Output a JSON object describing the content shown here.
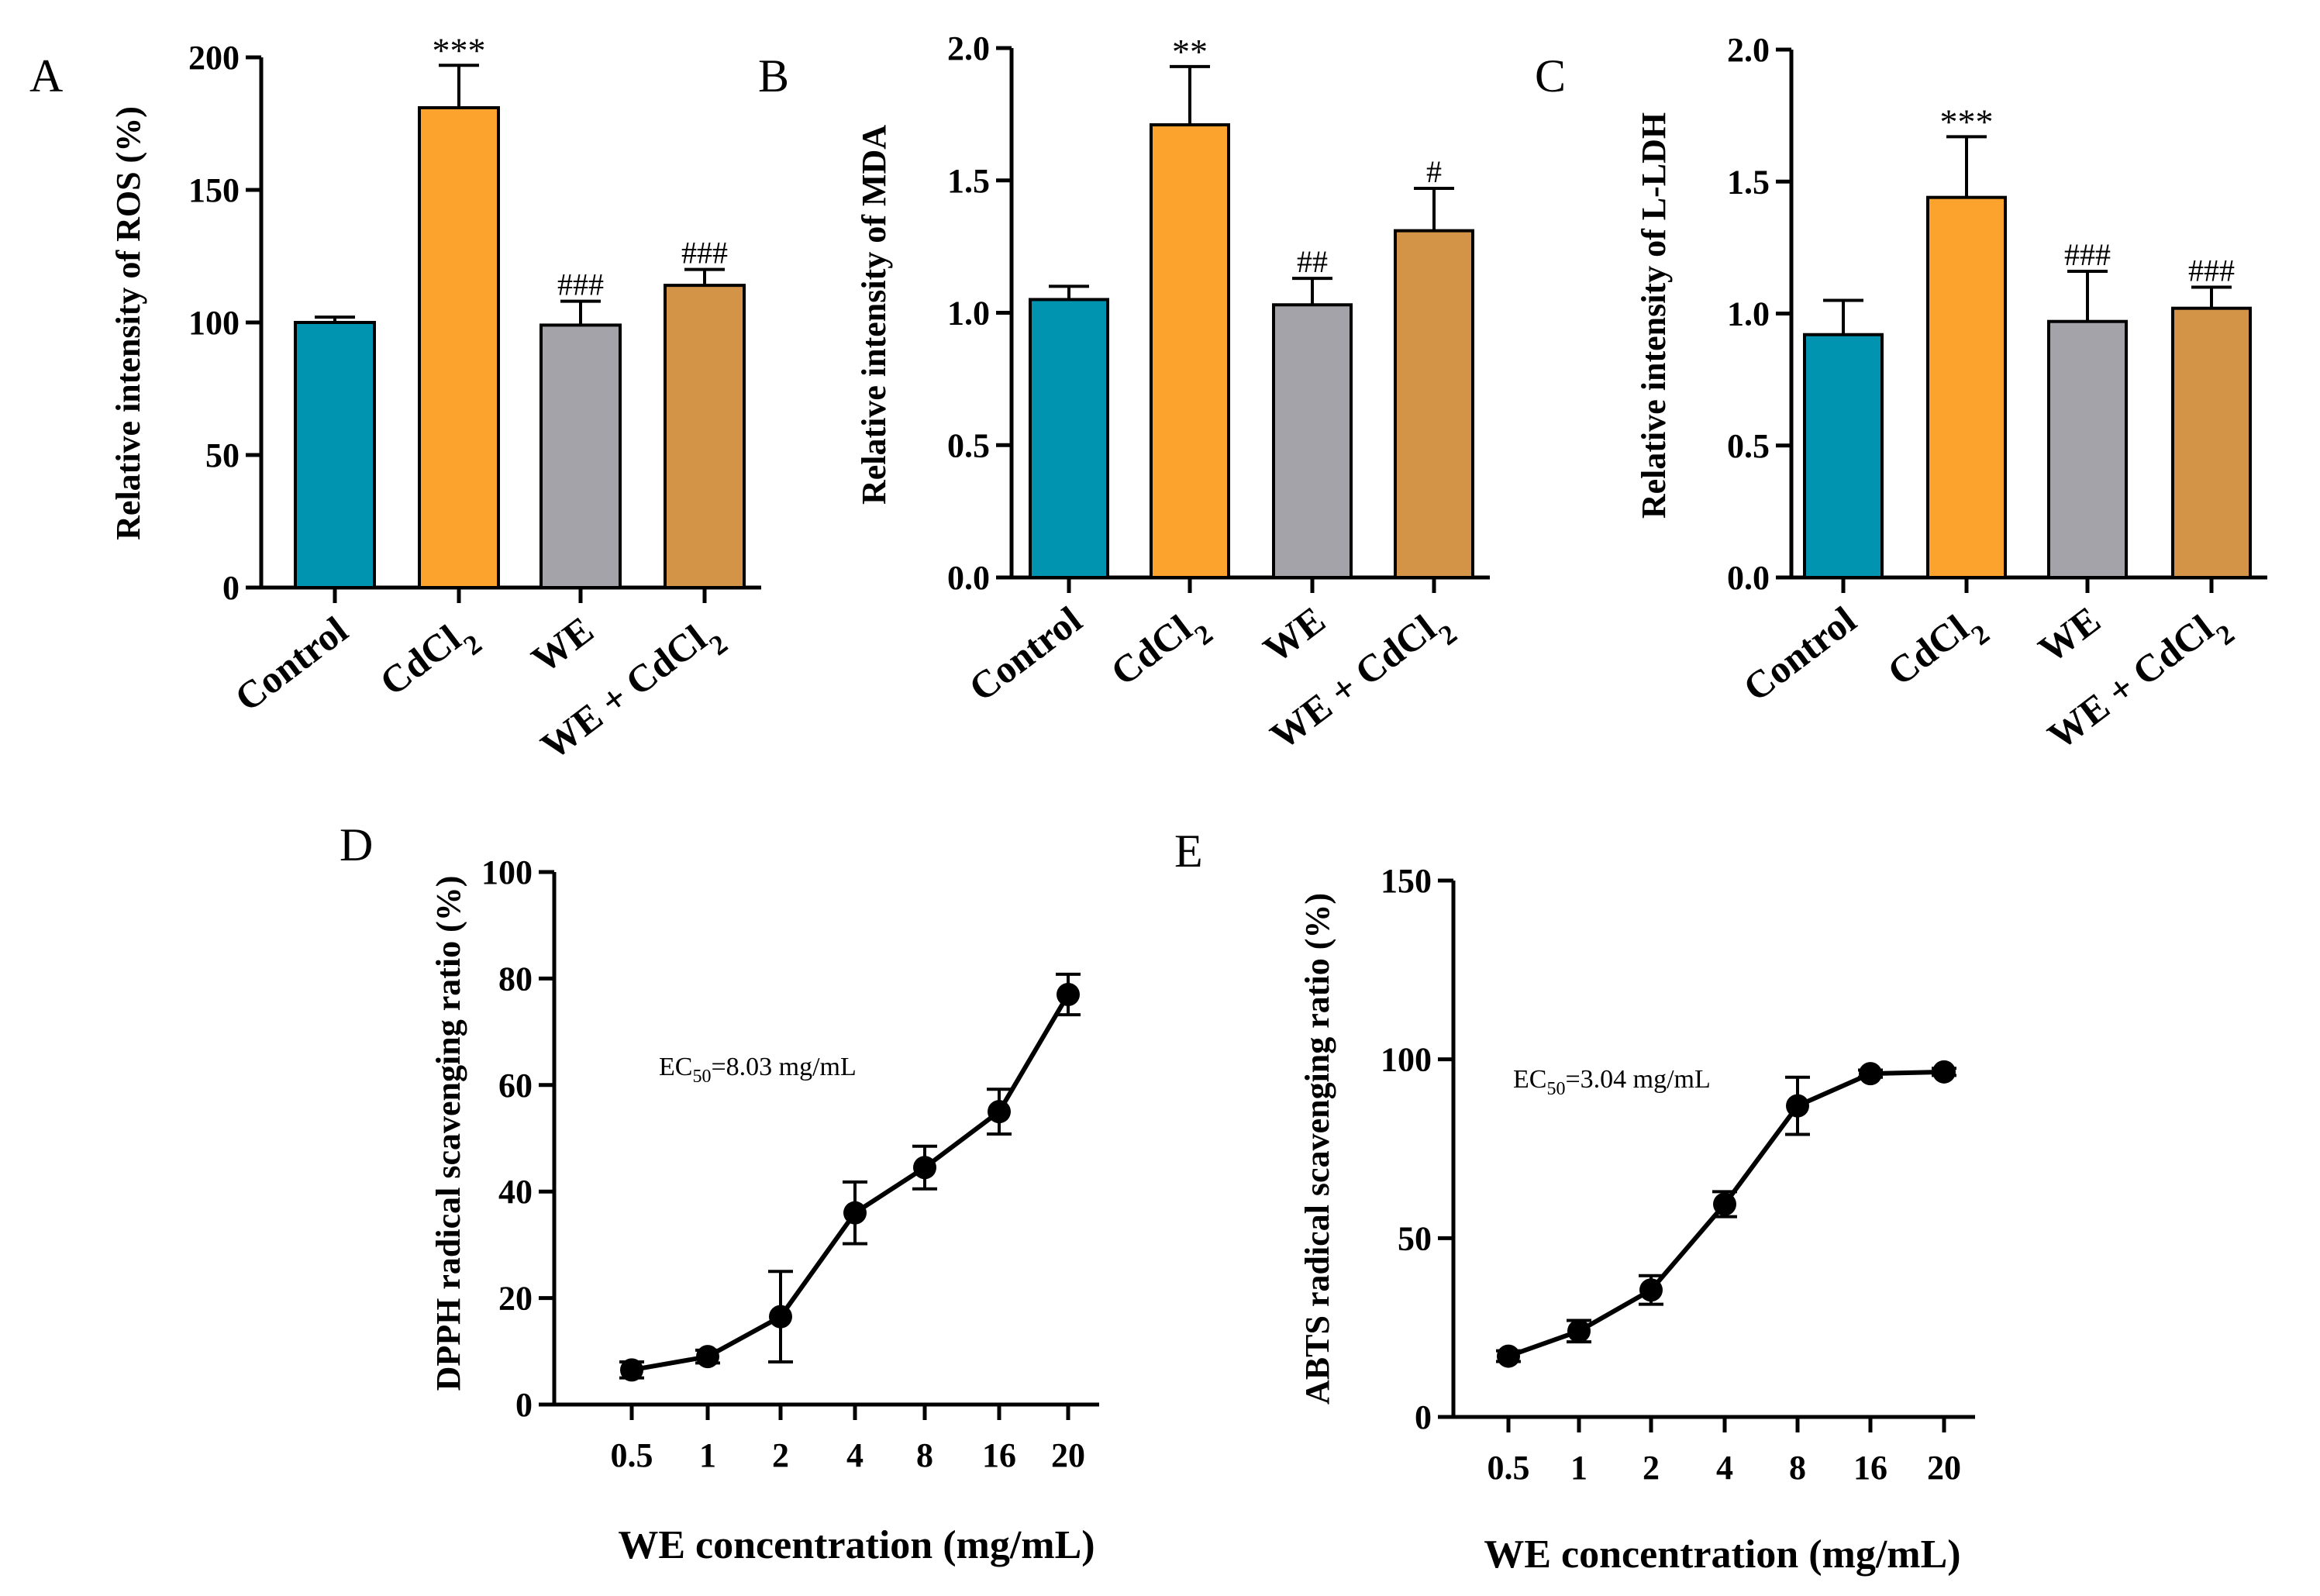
{
  "chart_data": [
    {
      "type": "bar",
      "panel": "A",
      "ylabel": "Relative intensity of ROS (%)",
      "ylim": [
        0,
        200
      ],
      "yticks": [
        0,
        50,
        100,
        150,
        200
      ],
      "categories": [
        "Control",
        "CdCl",
        "WE",
        "WE + CdCl"
      ],
      "category_subscripts": [
        "",
        "2",
        "",
        "2"
      ],
      "values": [
        100,
        181,
        99,
        114
      ],
      "errors": [
        2,
        16,
        9,
        6
      ],
      "annotations": [
        "",
        "***",
        "###",
        "###"
      ],
      "colors": [
        "#0094b0",
        "#fba32d",
        "#a3a3a9",
        "#d39448"
      ]
    },
    {
      "type": "bar",
      "panel": "B",
      "ylabel": "Relative intensity of MDA",
      "ylim": [
        0,
        2.0
      ],
      "yticks": [
        "0.0",
        "0.5",
        "1.0",
        "1.5",
        "2.0"
      ],
      "categories": [
        "Control",
        "CdCl",
        "WE",
        "WE + CdCl"
      ],
      "category_subscripts": [
        "",
        "2",
        "",
        "2"
      ],
      "values": [
        1.05,
        1.71,
        1.03,
        1.31
      ],
      "errors": [
        0.05,
        0.22,
        0.1,
        0.16
      ],
      "annotations": [
        "",
        "**",
        "##",
        "#"
      ],
      "colors": [
        "#0094b0",
        "#fba32d",
        "#a3a3a9",
        "#d39448"
      ]
    },
    {
      "type": "bar",
      "panel": "C",
      "ylabel": "Relative intensity of L-LDH",
      "ylim": [
        0,
        2.0
      ],
      "yticks": [
        "0.0",
        "0.5",
        "1.0",
        "1.5",
        "2.0"
      ],
      "categories": [
        "Control",
        "CdCl",
        "WE",
        "WE + CdCl"
      ],
      "category_subscripts": [
        "",
        "2",
        "",
        "2"
      ],
      "values": [
        0.92,
        1.44,
        0.97,
        1.02
      ],
      "errors": [
        0.13,
        0.23,
        0.19,
        0.08
      ],
      "annotations": [
        "",
        "***",
        "###",
        "###"
      ],
      "colors": [
        "#0094b0",
        "#fba32d",
        "#a3a3a9",
        "#d39448"
      ]
    },
    {
      "type": "line",
      "panel": "D",
      "xlabel": "WE concentration (mg/mL)",
      "ylabel": "DPPH radical scavenging ratio (%)",
      "ylim": [
        0,
        100
      ],
      "yticks": [
        0,
        20,
        40,
        60,
        80,
        100
      ],
      "x": [
        "0.5",
        "1",
        "2",
        "4",
        "8",
        "16",
        "20"
      ],
      "y": [
        6.5,
        9,
        16.5,
        36,
        44.5,
        55,
        77
      ],
      "errors": [
        1.5,
        1.2,
        8.5,
        5.8,
        4,
        4.2,
        3.8
      ],
      "annotation_main": "EC",
      "annotation_sub": "50",
      "annotation_rest": "=8.03 mg/mL"
    },
    {
      "type": "line",
      "panel": "E",
      "xlabel": "WE concentration (mg/mL)",
      "ylabel": "ABTS radical scavenging ratio (%)",
      "ylim": [
        0,
        150
      ],
      "yticks": [
        0,
        50,
        100,
        150
      ],
      "x": [
        "0.5",
        "1",
        "2",
        "4",
        "8",
        "16",
        "20"
      ],
      "y": [
        17,
        24,
        35.5,
        59.5,
        87,
        96,
        96.5
      ],
      "errors": [
        1.5,
        3,
        4,
        3.5,
        8,
        1,
        1
      ],
      "annotation_main": "EC",
      "annotation_sub": "50",
      "annotation_rest": "=3.04 mg/mL"
    }
  ]
}
